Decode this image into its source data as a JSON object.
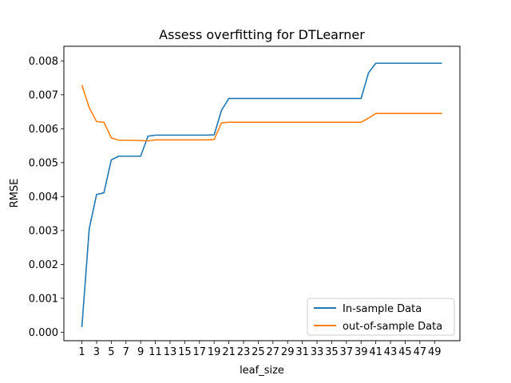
{
  "chart_data": {
    "type": "line",
    "title": "Assess overfitting for DTLearner",
    "xlabel": "leaf_size",
    "ylabel": "RMSE",
    "x": [
      1,
      2,
      3,
      4,
      5,
      6,
      7,
      8,
      9,
      10,
      11,
      12,
      13,
      14,
      15,
      16,
      17,
      18,
      19,
      20,
      21,
      22,
      23,
      24,
      25,
      26,
      27,
      28,
      29,
      30,
      31,
      32,
      33,
      34,
      35,
      36,
      37,
      38,
      39,
      40,
      41,
      42,
      43,
      44,
      45,
      46,
      47,
      48,
      49,
      50
    ],
    "xticks": [
      1,
      3,
      5,
      7,
      9,
      11,
      13,
      15,
      17,
      19,
      21,
      23,
      25,
      27,
      29,
      31,
      33,
      35,
      37,
      39,
      41,
      43,
      45,
      47,
      49
    ],
    "yticks": [
      "0.000",
      "0.001",
      "0.002",
      "0.003",
      "0.004",
      "0.005",
      "0.006",
      "0.007",
      "0.008"
    ],
    "ylim": [
      -0.00025,
      0.00843
    ],
    "xlim": [
      -1.45,
      52.45
    ],
    "grid": false,
    "legend_position": "lower-right",
    "series": [
      {
        "name": "In-sample Data",
        "color": "#1f77b4",
        "values": [
          0.00015,
          0.00305,
          0.00406,
          0.00411,
          0.00508,
          0.00519,
          0.00519,
          0.00519,
          0.00519,
          0.00578,
          0.00581,
          0.00581,
          0.00581,
          0.00581,
          0.00581,
          0.00581,
          0.00581,
          0.00581,
          0.00582,
          0.00654,
          0.00689,
          0.00689,
          0.00689,
          0.00689,
          0.00689,
          0.00689,
          0.00689,
          0.00689,
          0.00689,
          0.00689,
          0.00689,
          0.00689,
          0.00689,
          0.00689,
          0.00689,
          0.00689,
          0.00689,
          0.00689,
          0.00689,
          0.00764,
          0.00793,
          0.00793,
          0.00793,
          0.00793,
          0.00793,
          0.00793,
          0.00793,
          0.00793,
          0.00793,
          0.00793
        ]
      },
      {
        "name": "out-of-sample Data",
        "color": "#ff7f0e",
        "values": [
          0.00729,
          0.00662,
          0.00621,
          0.00619,
          0.00573,
          0.00566,
          0.00566,
          0.00566,
          0.00565,
          0.00564,
          0.00567,
          0.00567,
          0.00567,
          0.00567,
          0.00567,
          0.00567,
          0.00567,
          0.00567,
          0.00568,
          0.00617,
          0.00619,
          0.00619,
          0.00619,
          0.00619,
          0.00619,
          0.00619,
          0.00619,
          0.00619,
          0.00619,
          0.00619,
          0.00619,
          0.00619,
          0.00619,
          0.00619,
          0.00619,
          0.00619,
          0.00619,
          0.00619,
          0.00619,
          0.00631,
          0.00645,
          0.00645,
          0.00645,
          0.00645,
          0.00645,
          0.00645,
          0.00645,
          0.00645,
          0.00645,
          0.00645
        ]
      }
    ]
  }
}
